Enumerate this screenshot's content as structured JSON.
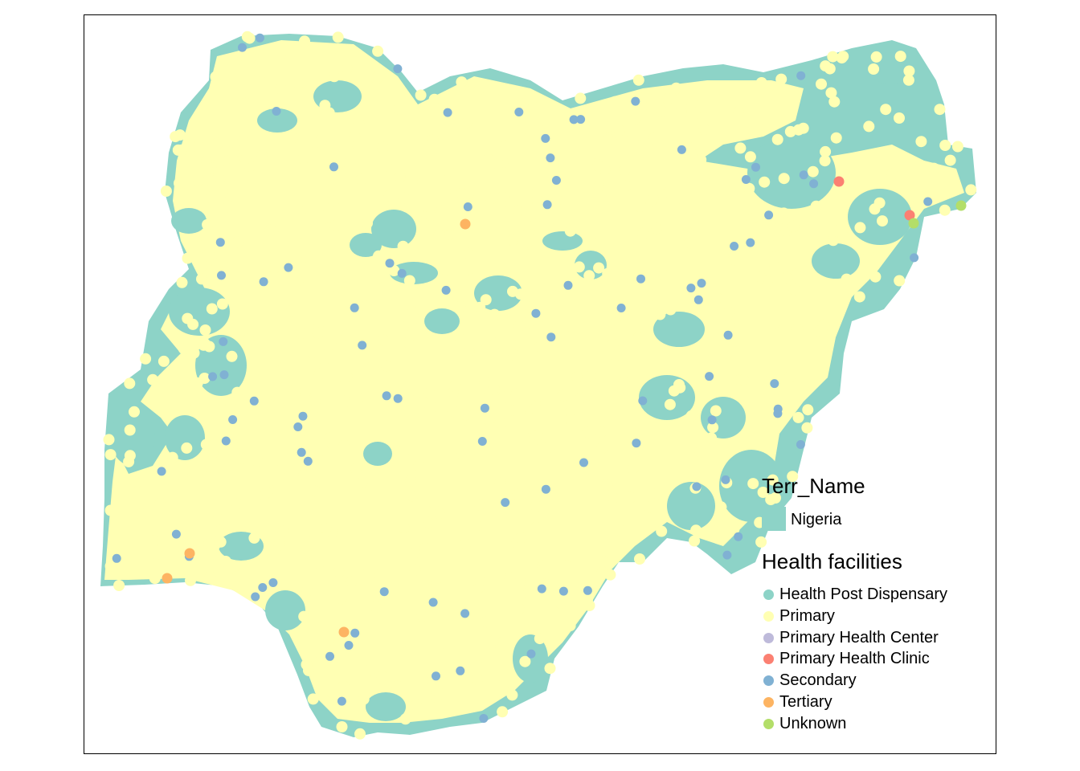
{
  "map": {
    "country_fill": "#ffffb3",
    "background": "#ffffff"
  },
  "legend": {
    "terr_title": "Terr_Name",
    "terr_items": [
      {
        "label": "Nigeria",
        "color": "#8dd3c7"
      }
    ],
    "facilities_title": "Health facilities",
    "facility_items": [
      {
        "label": "Health Post Dispensary",
        "color": "#8dd3c7"
      },
      {
        "label": "Primary",
        "color": "#ffffb3"
      },
      {
        "label": "Primary Health Center",
        "color": "#bebada"
      },
      {
        "label": "Primary Health Clinic",
        "color": "#fb8072"
      },
      {
        "label": "Secondary",
        "color": "#80b1d3"
      },
      {
        "label": "Tertiary",
        "color": "#fdb462"
      },
      {
        "label": "Unknown",
        "color": "#b3de69"
      }
    ]
  }
}
